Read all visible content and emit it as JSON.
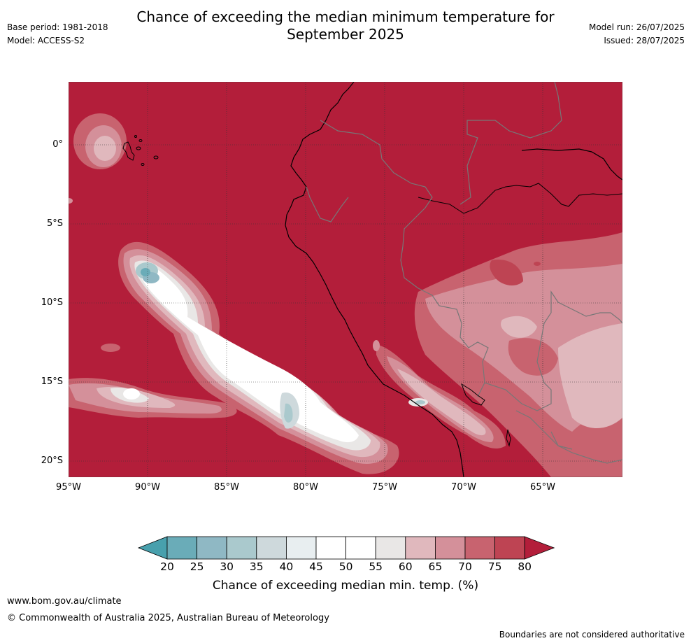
{
  "header": {
    "title_line1": "Chance of exceeding the median minimum temperature for",
    "title_line2": "September 2025",
    "base_period": "Base period: 1981-2018",
    "model": "Model: ACCESS-S2",
    "model_run": "Model run: 26/07/2025",
    "issued": "Issued: 28/07/2025"
  },
  "map": {
    "lat_labels": [
      "0°",
      "5°S",
      "10°S",
      "15°S",
      "20°S"
    ],
    "lon_labels": [
      "95°W",
      "90°W",
      "85°W",
      "80°W",
      "75°W",
      "70°W",
      "65°W"
    ],
    "background_color": "#b31e3a"
  },
  "colorbar": {
    "ticks": [
      "20",
      "25",
      "30",
      "35",
      "40",
      "45",
      "50",
      "55",
      "60",
      "65",
      "70",
      "75",
      "80"
    ],
    "colors": [
      "#48a0ad",
      "#6aacb8",
      "#8fb8c4",
      "#aac9cd",
      "#ced9dc",
      "#e8eef0",
      "#ffffff",
      "#ffffff",
      "#e9e7e6",
      "#e0b8bd",
      "#d4909a",
      "#c8636f",
      "#be4453",
      "#b31e3a"
    ],
    "title": "Chance of exceeding median min. temp. (%)"
  },
  "footer": {
    "url": "www.bom.gov.au/climate",
    "copyright": "© Commonwealth of Australia 2025, Australian Bureau of Meteorology",
    "disclaimer": "Boundaries are not considered authoritative"
  }
}
